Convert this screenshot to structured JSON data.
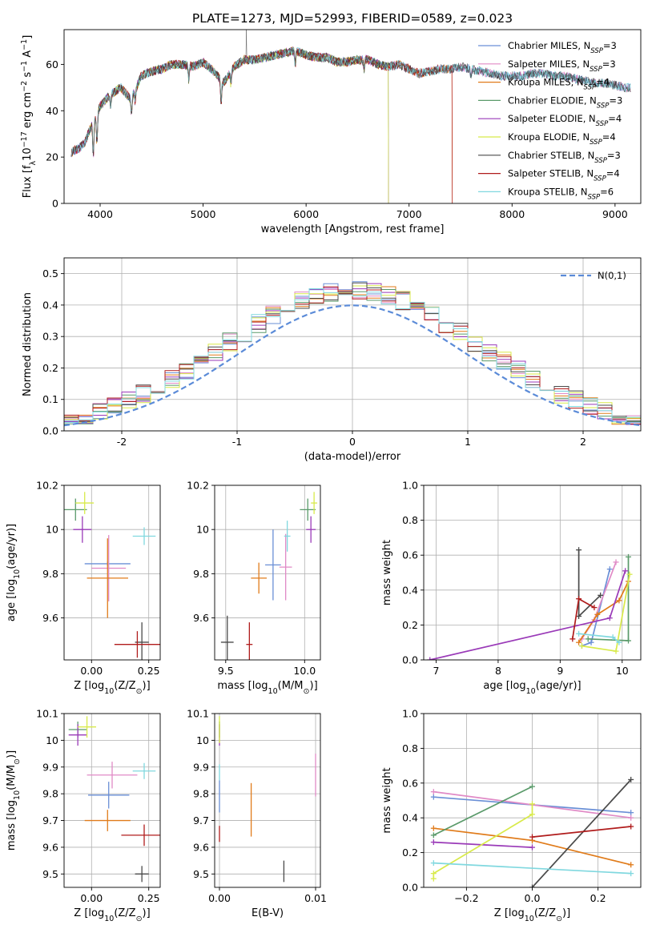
{
  "title": "PLATE=1273, MJD=52993, FIBERID=0589, z=0.023",
  "models": [
    {
      "name": "Chabrier MILES",
      "nssp": "3",
      "color": "#6a8fd6"
    },
    {
      "name": "Salpeter MILES",
      "nssp": "3",
      "color": "#e08ac6"
    },
    {
      "name": "Kroupa MILES",
      "nssp": "4",
      "color": "#e07b1a"
    },
    {
      "name": "Chabrier ELODIE",
      "nssp": "3",
      "color": "#5a9a6a"
    },
    {
      "name": "Salpeter ELODIE",
      "nssp": "4",
      "color": "#9a3ab8"
    },
    {
      "name": "Kroupa ELODIE",
      "nssp": "4",
      "color": "#d8ea4a"
    },
    {
      "name": "Chabrier STELIB",
      "nssp": "3",
      "color": "#4a4a4a"
    },
    {
      "name": "Salpeter STELIB",
      "nssp": "4",
      "color": "#b01c1c"
    },
    {
      "name": "Kroupa STELIB",
      "nssp": "6",
      "color": "#80d8df"
    }
  ],
  "chart_data": [
    {
      "id": "spectrum",
      "type": "line",
      "xlabel": "wavelength [Angstrom, rest frame]",
      "ylabel": "Flux [f_λ 10^-17 erg cm^-2 s^-1 A^-1]",
      "xlim": [
        3650,
        9250
      ],
      "ylim": [
        0,
        75
      ],
      "xticks": [
        4000,
        5000,
        6000,
        7000,
        8000,
        9000
      ],
      "yticks": [
        0,
        20,
        40,
        60
      ],
      "continuum": [
        [
          3720,
          22
        ],
        [
          3800,
          24
        ],
        [
          3850,
          26
        ],
        [
          3900,
          32
        ],
        [
          3950,
          36
        ],
        [
          4000,
          42
        ],
        [
          4100,
          47
        ],
        [
          4200,
          50
        ],
        [
          4300,
          45
        ],
        [
          4400,
          55
        ],
        [
          4500,
          57
        ],
        [
          4600,
          58
        ],
        [
          4700,
          60
        ],
        [
          4800,
          60
        ],
        [
          4900,
          59
        ],
        [
          5000,
          61
        ],
        [
          5100,
          57
        ],
        [
          5200,
          52
        ],
        [
          5300,
          59
        ],
        [
          5400,
          62
        ],
        [
          5500,
          62
        ],
        [
          5600,
          63
        ],
        [
          5700,
          64
        ],
        [
          5800,
          65
        ],
        [
          5900,
          66
        ],
        [
          6000,
          64
        ],
        [
          6100,
          63
        ],
        [
          6200,
          63
        ],
        [
          6300,
          61
        ],
        [
          6400,
          61
        ],
        [
          6500,
          62
        ],
        [
          6600,
          62
        ],
        [
          6700,
          60
        ],
        [
          6800,
          59
        ],
        [
          6900,
          60
        ],
        [
          7000,
          58
        ],
        [
          7100,
          56
        ],
        [
          7200,
          57
        ],
        [
          7300,
          58
        ],
        [
          7400,
          58
        ],
        [
          7500,
          59
        ],
        [
          7600,
          58
        ],
        [
          7700,
          57
        ],
        [
          7800,
          56
        ],
        [
          7900,
          55
        ],
        [
          8000,
          55
        ],
        [
          8100,
          55
        ],
        [
          8200,
          56
        ],
        [
          8300,
          56
        ],
        [
          8400,
          55
        ],
        [
          8500,
          55
        ],
        [
          8600,
          54
        ],
        [
          8700,
          53
        ],
        [
          8800,
          52
        ],
        [
          8900,
          52
        ],
        [
          9000,
          51
        ],
        [
          9100,
          50
        ]
      ],
      "model_ranges": [
        [
          3720,
          9150
        ],
        [
          3720,
          9150
        ],
        [
          3720,
          7420
        ],
        [
          3720,
          6800
        ],
        [
          3720,
          6800
        ],
        [
          3900,
          6800
        ],
        [
          3720,
          9150
        ],
        [
          3720,
          7420
        ],
        [
          3720,
          9150
        ]
      ],
      "legend_loc": "upper right"
    },
    {
      "id": "residuals",
      "type": "line",
      "xlabel": "(data-model)/error",
      "ylabel": "Normed distribution",
      "xlim": [
        -2.5,
        2.5
      ],
      "ylim": [
        0,
        0.55
      ],
      "xticks": [
        -2,
        -1,
        0,
        1,
        2
      ],
      "yticks": [
        0,
        0.1,
        0.2,
        0.3,
        0.4,
        0.5
      ],
      "grid": true,
      "bin_edges": [
        -2.5,
        2.5
      ],
      "bins": 40,
      "legend": "N(0,1)",
      "legend_loc": "upper right"
    },
    {
      "id": "age_vs_Z",
      "type": "scatter",
      "xlabel": "Z [log10(Z/Z⊙)]",
      "ylabel": "age [log10(age/yr)]",
      "xlim": [
        -0.12,
        0.3
      ],
      "ylim": [
        9.41,
        10.2
      ],
      "xticks": [
        0.0,
        0.25
      ],
      "xticklabels": [
        "0.00",
        "0.25"
      ],
      "yticks": [
        9.6,
        9.8,
        10.0,
        10.2
      ],
      "points": [
        [
          0.07,
          9.845,
          0.1,
          0.01
        ],
        [
          0.075,
          9.825,
          0.075,
          0.15
        ],
        [
          0.07,
          9.78,
          0.09,
          0.18
        ],
        [
          -0.07,
          10.09,
          0.05,
          0.05
        ],
        [
          -0.04,
          10.0,
          0.04,
          0.06
        ],
        [
          -0.03,
          10.12,
          0.04,
          0.05
        ],
        [
          0.22,
          9.49,
          0.03,
          0.09
        ],
        [
          0.2,
          9.48,
          0.1,
          0.06
        ],
        [
          0.23,
          9.97,
          0.05,
          0.04
        ]
      ]
    },
    {
      "id": "age_vs_mass",
      "type": "scatter",
      "xlabel": "mass [log10(M/M⊙)]",
      "ylabel": "",
      "xlim": [
        9.43,
        10.1
      ],
      "ylim": [
        9.41,
        10.2
      ],
      "xticks": [
        9.5,
        10.0
      ],
      "xticklabels": [
        "9.5",
        "10.0"
      ],
      "yticks": [
        9.6,
        9.8,
        10.0,
        10.2
      ],
      "points": [
        [
          9.8,
          9.84,
          0.05,
          0.16
        ],
        [
          9.88,
          9.83,
          0.04,
          0.15
        ],
        [
          9.71,
          9.78,
          0.05,
          0.07
        ],
        [
          10.02,
          10.09,
          0.05,
          0.05
        ],
        [
          10.04,
          10.0,
          0.03,
          0.06
        ],
        [
          10.06,
          10.12,
          0.02,
          0.05
        ],
        [
          9.51,
          9.49,
          0.04,
          0.12
        ],
        [
          9.65,
          9.48,
          0.02,
          0.1
        ],
        [
          9.89,
          9.97,
          0.02,
          0.07
        ]
      ]
    },
    {
      "id": "massweight_vs_age",
      "type": "line",
      "xlabel": "age [log10(age/yr)]",
      "ylabel": "mass weight",
      "xlim": [
        6.8,
        10.3
      ],
      "ylim": [
        0,
        1.0
      ],
      "xticks": [
        7,
        8,
        9,
        10
      ],
      "yticks": [
        0,
        0.2,
        0.4,
        0.6,
        0.8,
        1.0
      ],
      "grid": true,
      "series": [
        {
          "values": [
            [
              9.35,
              0.08
            ],
            [
              9.5,
              0.1
            ],
            [
              9.8,
              0.52
            ]
          ]
        },
        {
          "values": [
            [
              9.35,
              0.12
            ],
            [
              9.55,
              0.23
            ],
            [
              9.9,
              0.56
            ]
          ]
        },
        {
          "values": [
            [
              9.3,
              0.1
            ],
            [
              9.6,
              0.26
            ],
            [
              9.95,
              0.34
            ],
            [
              10.1,
              0.45
            ]
          ]
        },
        {
          "values": [
            [
              9.45,
              0.12
            ],
            [
              10.1,
              0.11
            ],
            [
              10.1,
              0.59
            ]
          ]
        },
        {
          "values": [
            [
              6.9,
              0.0
            ],
            [
              9.8,
              0.24
            ],
            [
              10.05,
              0.51
            ]
          ]
        },
        {
          "values": [
            [
              9.35,
              0.08
            ],
            [
              9.9,
              0.05
            ],
            [
              10.12,
              0.49
            ]
          ]
        },
        {
          "values": [
            [
              9.3,
              0.63
            ],
            [
              9.3,
              0.25
            ],
            [
              9.65,
              0.37
            ]
          ]
        },
        {
          "values": [
            [
              9.2,
              0.12
            ],
            [
              9.3,
              0.35
            ],
            [
              9.55,
              0.3
            ]
          ]
        },
        {
          "values": [
            [
              9.3,
              0.15
            ],
            [
              9.85,
              0.13
            ],
            [
              9.95,
              0.1
            ]
          ]
        }
      ]
    },
    {
      "id": "mass_vs_Z",
      "type": "scatter",
      "xlabel": "Z [log10(Z/Z⊙)]",
      "ylabel": "mass [log10(M/M⊙)]",
      "xlim": [
        -0.12,
        0.3
      ],
      "ylim": [
        9.45,
        10.1
      ],
      "xticks": [
        0.0,
        0.25
      ],
      "xticklabels": [
        "0.00",
        "0.25"
      ],
      "yticks": [
        9.5,
        9.6,
        9.7,
        9.8,
        9.9,
        10.0,
        10.1
      ],
      "points": [
        [
          0.075,
          9.795,
          0.09,
          0.05
        ],
        [
          0.09,
          9.87,
          0.11,
          0.05
        ],
        [
          0.07,
          9.7,
          0.1,
          0.04
        ],
        [
          -0.06,
          10.04,
          0.04,
          0.03
        ],
        [
          -0.06,
          10.02,
          0.04,
          0.04
        ],
        [
          -0.02,
          10.05,
          0.04,
          0.04
        ],
        [
          0.22,
          9.5,
          0.03,
          0.03
        ],
        [
          0.23,
          9.645,
          0.1,
          0.04
        ],
        [
          0.23,
          9.885,
          0.05,
          0.03
        ]
      ]
    },
    {
      "id": "mass_vs_ebv",
      "type": "scatter",
      "xlabel": "E(B-V)",
      "ylabel": "",
      "xlim": [
        -0.0005,
        0.0105
      ],
      "ylim": [
        9.45,
        10.1
      ],
      "xticks": [
        0.0,
        0.01
      ],
      "xticklabels": [
        "0.00",
        "0.01"
      ],
      "yticks": [
        9.5,
        9.6,
        9.7,
        9.8,
        9.9,
        10.0,
        10.1
      ],
      "points": [
        [
          0.0,
          9.79,
          0,
          0.06
        ],
        [
          0.01,
          9.87,
          0,
          0.08
        ],
        [
          0.0033,
          9.74,
          0,
          0.1
        ],
        [
          0.0,
          10.04,
          0,
          0.03
        ],
        [
          0.0,
          10.02,
          0,
          0.04
        ],
        [
          0.0,
          10.04,
          0,
          0.05
        ],
        [
          0.0067,
          9.51,
          0,
          0.04
        ],
        [
          0.0,
          9.65,
          0,
          0.03
        ],
        [
          0.0,
          9.88,
          0,
          0.03
        ]
      ]
    },
    {
      "id": "massweight_vs_Z",
      "type": "line",
      "xlabel": "Z [log10(Z/Z⊙)]",
      "ylabel": "mass weight",
      "xlim": [
        -0.33,
        0.33
      ],
      "ylim": [
        0,
        1.0
      ],
      "xticks": [
        -0.2,
        0.0,
        0.2
      ],
      "xticklabels": [
        "−0.2",
        "0.0",
        "0.2"
      ],
      "yticks": [
        0,
        0.2,
        0.4,
        0.6,
        0.8,
        1.0
      ],
      "grid": true,
      "series": [
        {
          "values": [
            [
              -0.3,
              0.52
            ],
            [
              0.3,
              0.43
            ]
          ]
        },
        {
          "values": [
            [
              -0.3,
              0.55
            ],
            [
              0.3,
              0.4
            ]
          ]
        },
        {
          "values": [
            [
              -0.3,
              0.34
            ],
            [
              0.0,
              0.27
            ],
            [
              0.3,
              0.13
            ]
          ]
        },
        {
          "values": [
            [
              -0.3,
              0.3
            ],
            [
              0.0,
              0.58
            ]
          ]
        },
        {
          "values": [
            [
              -0.3,
              0.26
            ],
            [
              0.0,
              0.23
            ]
          ]
        },
        {
          "values": [
            [
              -0.3,
              0.05
            ],
            [
              -0.3,
              0.08
            ],
            [
              0.0,
              0.42
            ],
            [
              0.0,
              0.48
            ]
          ]
        },
        {
          "values": [
            [
              0.0,
              0.0
            ],
            [
              0.3,
              0.62
            ]
          ]
        },
        {
          "values": [
            [
              0.0,
              0.29
            ],
            [
              0.3,
              0.35
            ]
          ]
        },
        {
          "values": [
            [
              -0.3,
              0.14
            ],
            [
              0.3,
              0.08
            ]
          ]
        }
      ]
    }
  ]
}
